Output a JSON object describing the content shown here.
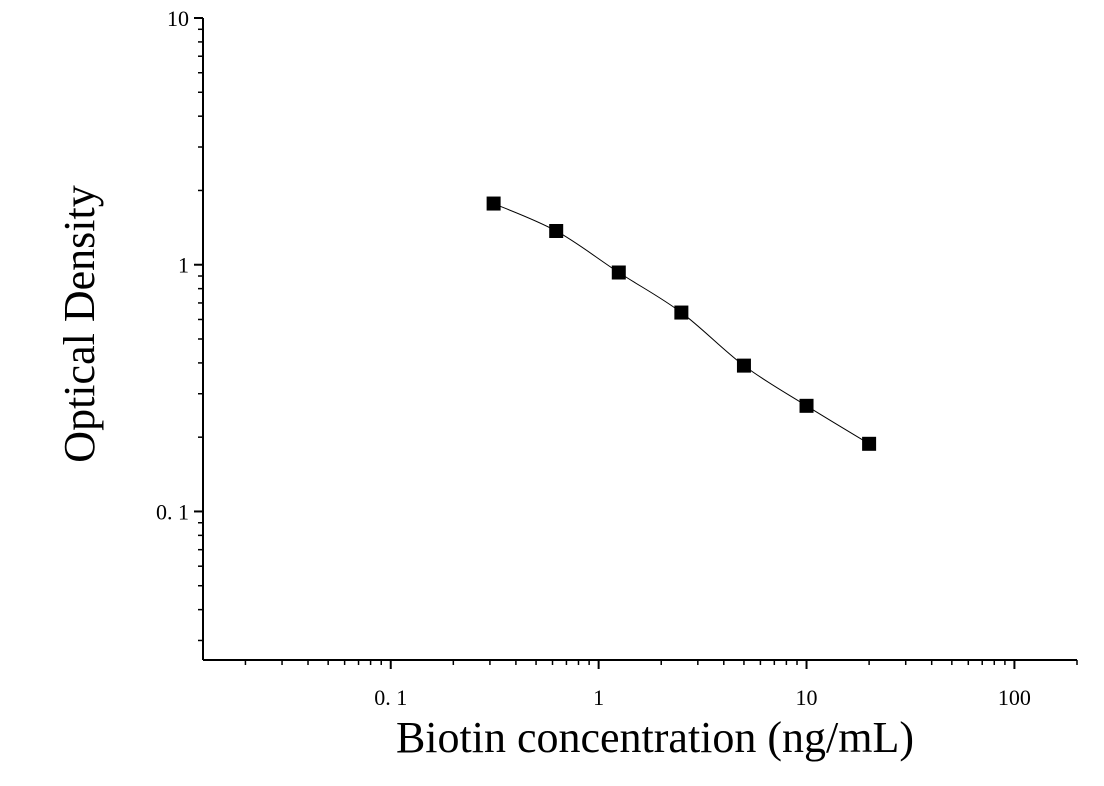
{
  "chart_data": {
    "type": "scatter",
    "x_label": "Biotin concentration (ng/mL)",
    "y_label": "Optical Density",
    "xscale": "log",
    "yscale": "log",
    "xlim": [
      0.0125,
      200
    ],
    "ylim": [
      0.025,
      10
    ],
    "xticks": [
      {
        "value": 0.1,
        "label": "0. 1"
      },
      1,
      10,
      100
    ],
    "yticks": [
      {
        "value": 0.1,
        "label": "0. 1"
      },
      1,
      10
    ],
    "minor_ticks": true,
    "fit_curve": true,
    "color": "#000000",
    "x": [
      0.3125,
      0.625,
      1.25,
      2.5,
      5,
      10,
      20
    ],
    "values": [
      1.77,
      1.37,
      0.93,
      0.64,
      0.39,
      0.268,
      0.188
    ]
  }
}
